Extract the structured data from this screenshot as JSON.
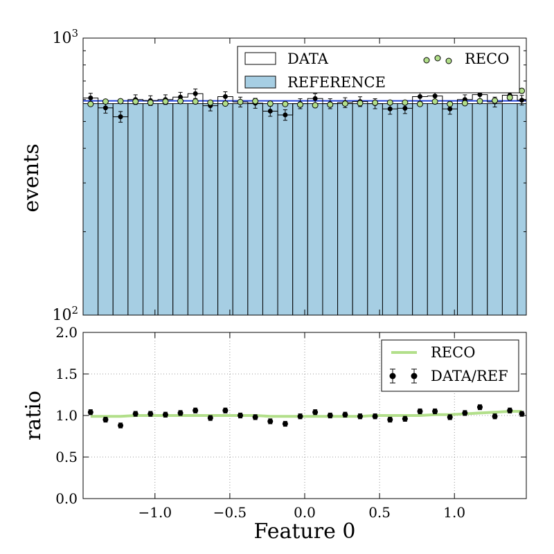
{
  "chart_data": [
    {
      "type": "bar",
      "panel": "top",
      "ylabel": "events",
      "yscale": "log",
      "ylim": [
        100,
        1000
      ],
      "ytick_labels": [
        {
          "value": 1000,
          "base": "10",
          "exp": "3"
        },
        {
          "value": 100,
          "base": "10",
          "exp": "2"
        }
      ],
      "grid": false,
      "legend_position": "top-right",
      "bin_edges": [
        -1.48,
        -1.38,
        -1.28,
        -1.18,
        -1.08,
        -0.98,
        -0.88,
        -0.78,
        -0.68,
        -0.58,
        -0.48,
        -0.38,
        -0.28,
        -0.18,
        -0.08,
        0.02,
        0.12,
        0.22,
        0.32,
        0.42,
        0.52,
        0.62,
        0.72,
        0.82,
        0.92,
        1.02,
        1.12,
        1.22,
        1.32,
        1.42,
        1.48
      ],
      "x": [
        -1.43,
        -1.33,
        -1.23,
        -1.13,
        -1.03,
        -0.93,
        -0.83,
        -0.73,
        -0.63,
        -0.53,
        -0.43,
        -0.33,
        -0.23,
        -0.13,
        -0.03,
        0.07,
        0.17,
        0.27,
        0.37,
        0.47,
        0.57,
        0.67,
        0.77,
        0.87,
        0.97,
        1.07,
        1.17,
        1.27,
        1.37,
        1.45
      ],
      "series": [
        {
          "name": "REFERENCE",
          "color": "#a6cee3",
          "style": "filled-histogram",
          "values": [
            580,
            580,
            580,
            580,
            580,
            580,
            580,
            580,
            580,
            580,
            580,
            580,
            580,
            580,
            580,
            580,
            580,
            580,
            580,
            580,
            580,
            580,
            580,
            580,
            580,
            580,
            580,
            580,
            580,
            580
          ]
        },
        {
          "name": "DATA",
          "color": "#000000",
          "style": "step-histogram-with-points",
          "values": [
            608,
            560,
            520,
            600,
            595,
            600,
            612,
            630,
            570,
            615,
            588,
            582,
            545,
            528,
            580,
            605,
            580,
            585,
            590,
            580,
            555,
            558,
            615,
            618,
            555,
            600,
            625,
            588,
            622,
            597
          ],
          "errors": [
            24,
            24,
            23,
            24,
            24,
            24,
            25,
            25,
            24,
            25,
            24,
            24,
            23,
            23,
            24,
            25,
            24,
            24,
            24,
            24,
            24,
            24,
            25,
            25,
            24,
            24,
            25,
            24,
            25,
            24
          ]
        },
        {
          "name": "RECO",
          "color": "#b2df8a",
          "style": "points",
          "values": [
            578,
            590,
            592,
            590,
            585,
            590,
            592,
            590,
            585,
            580,
            588,
            592,
            580,
            578,
            575,
            572,
            575,
            580,
            582,
            584,
            585,
            585,
            578,
            590,
            578,
            582,
            592,
            595,
            610,
            645
          ]
        }
      ],
      "legend": [
        "DATA",
        "RECO",
        "REFERENCE"
      ]
    },
    {
      "type": "scatter",
      "panel": "bottom",
      "xlabel": "Feature 0",
      "ylabel": "ratio",
      "xlim": [
        -1.48,
        1.48
      ],
      "ylim": [
        0.0,
        2.0
      ],
      "xticks": [
        -1.0,
        -0.5,
        0.0,
        0.5,
        1.0
      ],
      "xtick_labels": [
        "−1.0",
        "−0.5",
        "0.0",
        "0.5",
        "1.0"
      ],
      "yticks": [
        0.0,
        0.5,
        1.0,
        1.5,
        2.0
      ],
      "ytick_labels": [
        "0.0",
        "0.5",
        "1.0",
        "1.5",
        "2.0"
      ],
      "grid": true,
      "legend_position": "top-right",
      "x": [
        -1.43,
        -1.33,
        -1.23,
        -1.13,
        -1.03,
        -0.93,
        -0.83,
        -0.73,
        -0.63,
        -0.53,
        -0.43,
        -0.33,
        -0.23,
        -0.13,
        -0.03,
        0.07,
        0.17,
        0.27,
        0.37,
        0.47,
        0.57,
        0.67,
        0.77,
        0.87,
        0.97,
        1.07,
        1.17,
        1.27,
        1.37,
        1.45
      ],
      "series": [
        {
          "name": "RECO",
          "color": "#b2df8a",
          "style": "line",
          "values": [
            0.99,
            0.99,
            0.99,
            1.0,
            1.0,
            1.0,
            1.0,
            1.0,
            1.0,
            1.0,
            1.0,
            1.0,
            0.99,
            0.99,
            0.99,
            0.99,
            0.99,
            0.99,
            0.99,
            1.0,
            1.0,
            1.0,
            1.0,
            1.01,
            1.01,
            1.02,
            1.03,
            1.04,
            1.05,
            1.05
          ]
        },
        {
          "name": "DATA/REF",
          "color": "#000000",
          "style": "points-with-errorbars",
          "values": [
            1.04,
            0.95,
            0.88,
            1.02,
            1.02,
            1.01,
            1.03,
            1.06,
            0.97,
            1.06,
            1.0,
            0.98,
            0.93,
            0.9,
            0.99,
            1.04,
            1.0,
            1.01,
            0.99,
            0.99,
            0.95,
            0.96,
            1.05,
            1.05,
            0.98,
            1.03,
            1.1,
            0.99,
            1.06,
            1.02
          ],
          "errors": [
            0.03,
            0.03,
            0.03,
            0.03,
            0.03,
            0.03,
            0.03,
            0.03,
            0.03,
            0.03,
            0.03,
            0.03,
            0.03,
            0.03,
            0.03,
            0.03,
            0.03,
            0.03,
            0.03,
            0.03,
            0.03,
            0.03,
            0.03,
            0.03,
            0.03,
            0.03,
            0.03,
            0.03,
            0.03,
            0.03
          ]
        }
      ],
      "legend": [
        "RECO",
        "DATA/REF"
      ]
    }
  ]
}
